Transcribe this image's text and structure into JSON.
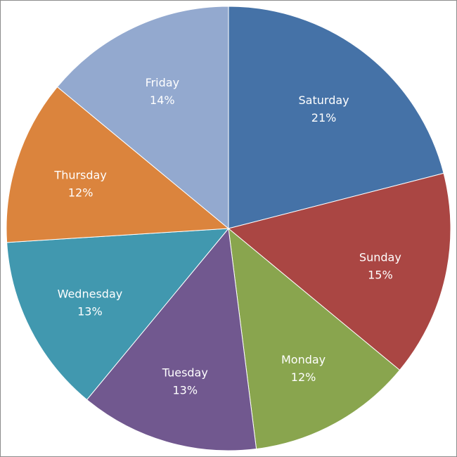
{
  "chart_data": {
    "type": "pie",
    "title": "",
    "start_angle_deg": 0,
    "direction": "clockwise",
    "legend": "none",
    "slices": [
      {
        "label": "Saturday",
        "value": 21,
        "value_label": "21%",
        "color": "#4572A7"
      },
      {
        "label": "Sunday",
        "value": 15,
        "value_label": "15%",
        "color": "#AA4643"
      },
      {
        "label": "Monday",
        "value": 12,
        "value_label": "12%",
        "color": "#89A54E"
      },
      {
        "label": "Tuesday",
        "value": 13,
        "value_label": "13%",
        "color": "#71588F"
      },
      {
        "label": "Wednesday",
        "value": 13,
        "value_label": "13%",
        "color": "#4198AF"
      },
      {
        "label": "Thursday",
        "value": 12,
        "value_label": "12%",
        "color": "#DB843D"
      },
      {
        "label": "Friday",
        "value": 14,
        "value_label": "14%",
        "color": "#93A9CF"
      }
    ]
  }
}
